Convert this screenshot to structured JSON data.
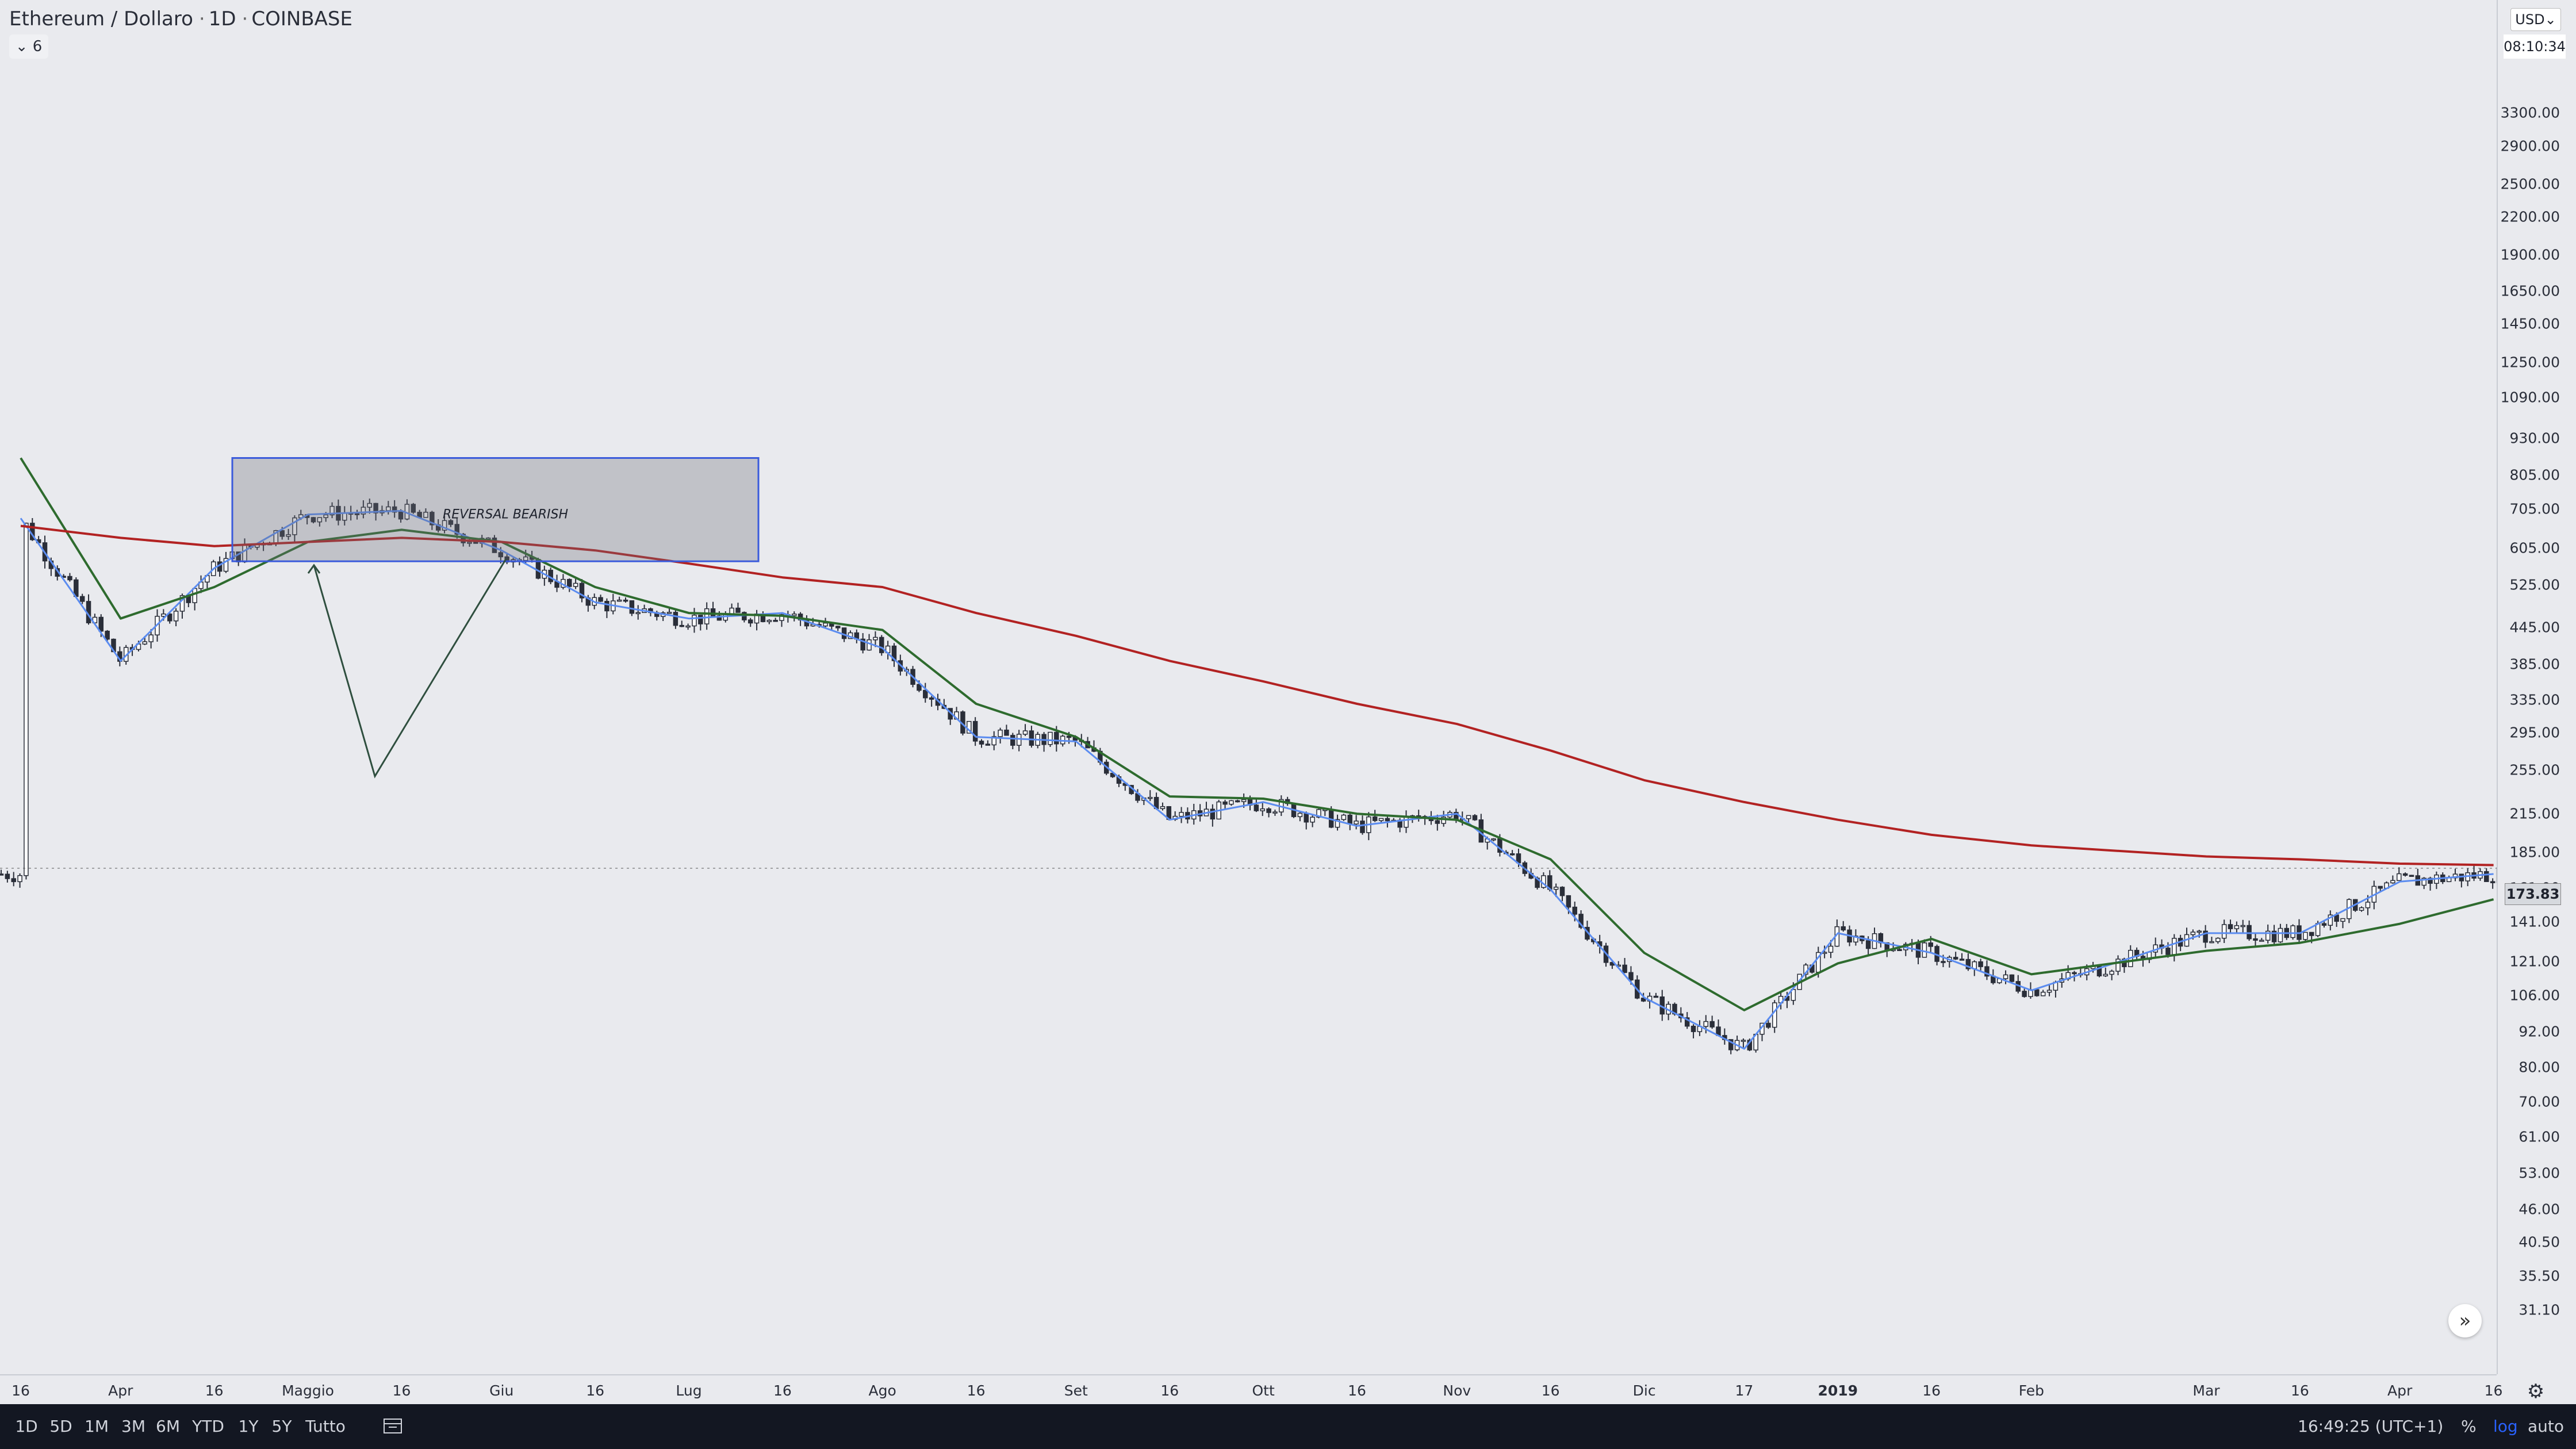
{
  "header": {
    "symbol": "Ethereum / Dollaro",
    "interval": "1D",
    "exchange": "COINBASE",
    "indicator_count": "6"
  },
  "price_scale": {
    "currency": "USD",
    "countdown": "08:10:34",
    "last_price": "173.83",
    "labels": [
      "3300.00",
      "2900.00",
      "2500.00",
      "2200.00",
      "1900.00",
      "1650.00",
      "1450.00",
      "1250.00",
      "1090.00",
      "930.00",
      "805.00",
      "705.00",
      "605.00",
      "525.00",
      "445.00",
      "385.00",
      "335.00",
      "295.00",
      "255.00",
      "215.00",
      "185.00",
      "161.00",
      "141.00",
      "121.00",
      "106.00",
      "92.00",
      "80.00",
      "70.00",
      "61.00",
      "53.00",
      "46.00",
      "40.50",
      "35.50",
      "31.10"
    ]
  },
  "time_scale": {
    "labels": [
      "16",
      "Apr",
      "16",
      "Maggio",
      "16",
      "Giu",
      "16",
      "Lug",
      "16",
      "Ago",
      "16",
      "Set",
      "16",
      "Ott",
      "16",
      "Nov",
      "16",
      "Dic",
      "17",
      "2019",
      "16",
      "Feb",
      "Mar",
      "16",
      "Apr",
      "16"
    ]
  },
  "annotation": {
    "text": "REVERSAL BEARISH"
  },
  "bottom_bar": {
    "ranges": [
      "1D",
      "5D",
      "1M",
      "3M",
      "6M",
      "YTD",
      "1Y",
      "5Y",
      "Tutto"
    ],
    "clock": "16:49:25 (UTC+1)",
    "percent": "%",
    "log": "log",
    "auto": "auto"
  },
  "colors": {
    "up_candle": "#ffffff",
    "down_candle": "#2a2e39",
    "ma_short": "#5b8cf0",
    "ma_mid": "#2e6b2e",
    "ma_long": "#b22222",
    "selection_box": "#3b5bdb",
    "background": "#e9eaee"
  },
  "chart_data": {
    "type": "candlestick",
    "title": "Ethereum / Dollaro",
    "scale": "log",
    "ylim": [
      31.1,
      3300
    ],
    "last_price": 173.83,
    "x": [
      "2018-03-16",
      "2018-04-01",
      "2018-04-16",
      "2018-05-01",
      "2018-05-16",
      "2018-06-01",
      "2018-06-16",
      "2018-07-01",
      "2018-07-16",
      "2018-08-01",
      "2018-08-16",
      "2018-09-01",
      "2018-09-16",
      "2018-10-01",
      "2018-10-16",
      "2018-11-01",
      "2018-11-16",
      "2018-12-01",
      "2018-12-17",
      "2019-01-01",
      "2019-01-16",
      "2019-02-01",
      "2019-03-01",
      "2019-03-16",
      "2019-04-01",
      "2019-04-16"
    ],
    "series": [
      {
        "values": [
          680,
          390,
          560,
          690,
          700,
          600,
          490,
          460,
          470,
          410,
          290,
          285,
          210,
          225,
          205,
          215,
          160,
          105,
          86,
          135,
          125,
          108,
          135,
          135,
          165,
          170
        ]
      },
      {
        "values": [
          860,
          460,
          520,
          620,
          650,
          620,
          520,
          470,
          465,
          440,
          330,
          290,
          230,
          228,
          215,
          210,
          180,
          125,
          100,
          120,
          132,
          115,
          126,
          130,
          140,
          154
        ]
      },
      {
        "values": [
          660,
          630,
          610,
          620,
          630,
          620,
          600,
          570,
          540,
          520,
          470,
          430,
          390,
          360,
          330,
          305,
          275,
          245,
          225,
          210,
          198,
          190,
          182,
          180,
          177,
          176
        ]
      }
    ]
  }
}
